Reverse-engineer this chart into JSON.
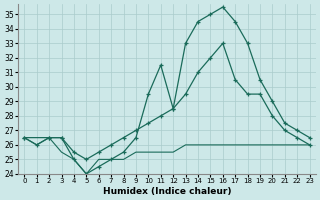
{
  "xlabel": "Humidex (Indice chaleur)",
  "background_color": "#cde8e8",
  "grid_color": "#aacccc",
  "line_color": "#1a6b5a",
  "xlim": [
    -0.5,
    23.5
  ],
  "ylim": [
    24,
    35.7
  ],
  "yticks": [
    24,
    25,
    26,
    27,
    28,
    29,
    30,
    31,
    32,
    33,
    34,
    35
  ],
  "xticks": [
    0,
    1,
    2,
    3,
    4,
    5,
    6,
    7,
    8,
    9,
    10,
    11,
    12,
    13,
    14,
    15,
    16,
    17,
    18,
    19,
    20,
    21,
    22,
    23
  ],
  "series1_x": [
    0,
    1,
    2,
    3,
    4,
    5,
    6,
    7,
    8,
    9,
    10,
    11,
    12,
    13,
    14,
    15,
    16,
    17,
    18,
    19,
    20,
    21,
    22,
    23
  ],
  "series1_y": [
    26.5,
    26.0,
    26.5,
    26.5,
    25.0,
    24.0,
    24.5,
    25.0,
    25.5,
    26.5,
    29.5,
    31.5,
    28.5,
    33.0,
    34.5,
    35.0,
    35.5,
    34.5,
    33.0,
    30.5,
    29.0,
    27.5,
    27.0,
    26.5
  ],
  "series2_x": [
    0,
    2,
    3,
    4,
    5,
    6,
    7,
    8,
    9,
    10,
    11,
    12,
    13,
    14,
    15,
    16,
    17,
    18,
    19,
    20,
    21,
    22,
    23
  ],
  "series2_y": [
    26.5,
    26.5,
    26.5,
    25.5,
    25.0,
    25.5,
    26.0,
    26.5,
    27.0,
    27.5,
    28.0,
    28.5,
    29.5,
    31.0,
    32.0,
    33.0,
    30.5,
    29.5,
    29.5,
    28.0,
    27.0,
    26.5,
    26.0
  ],
  "series3_x": [
    0,
    1,
    2,
    3,
    4,
    5,
    6,
    7,
    8,
    9,
    10,
    11,
    12,
    13,
    14,
    15,
    16,
    17,
    18,
    19,
    20,
    21,
    22,
    23
  ],
  "series3_y": [
    26.5,
    26.0,
    26.5,
    25.5,
    25.0,
    24.0,
    25.0,
    25.0,
    25.0,
    25.5,
    25.5,
    25.5,
    25.5,
    26.0,
    26.0,
    26.0,
    26.0,
    26.0,
    26.0,
    26.0,
    26.0,
    26.0,
    26.0,
    26.0
  ]
}
